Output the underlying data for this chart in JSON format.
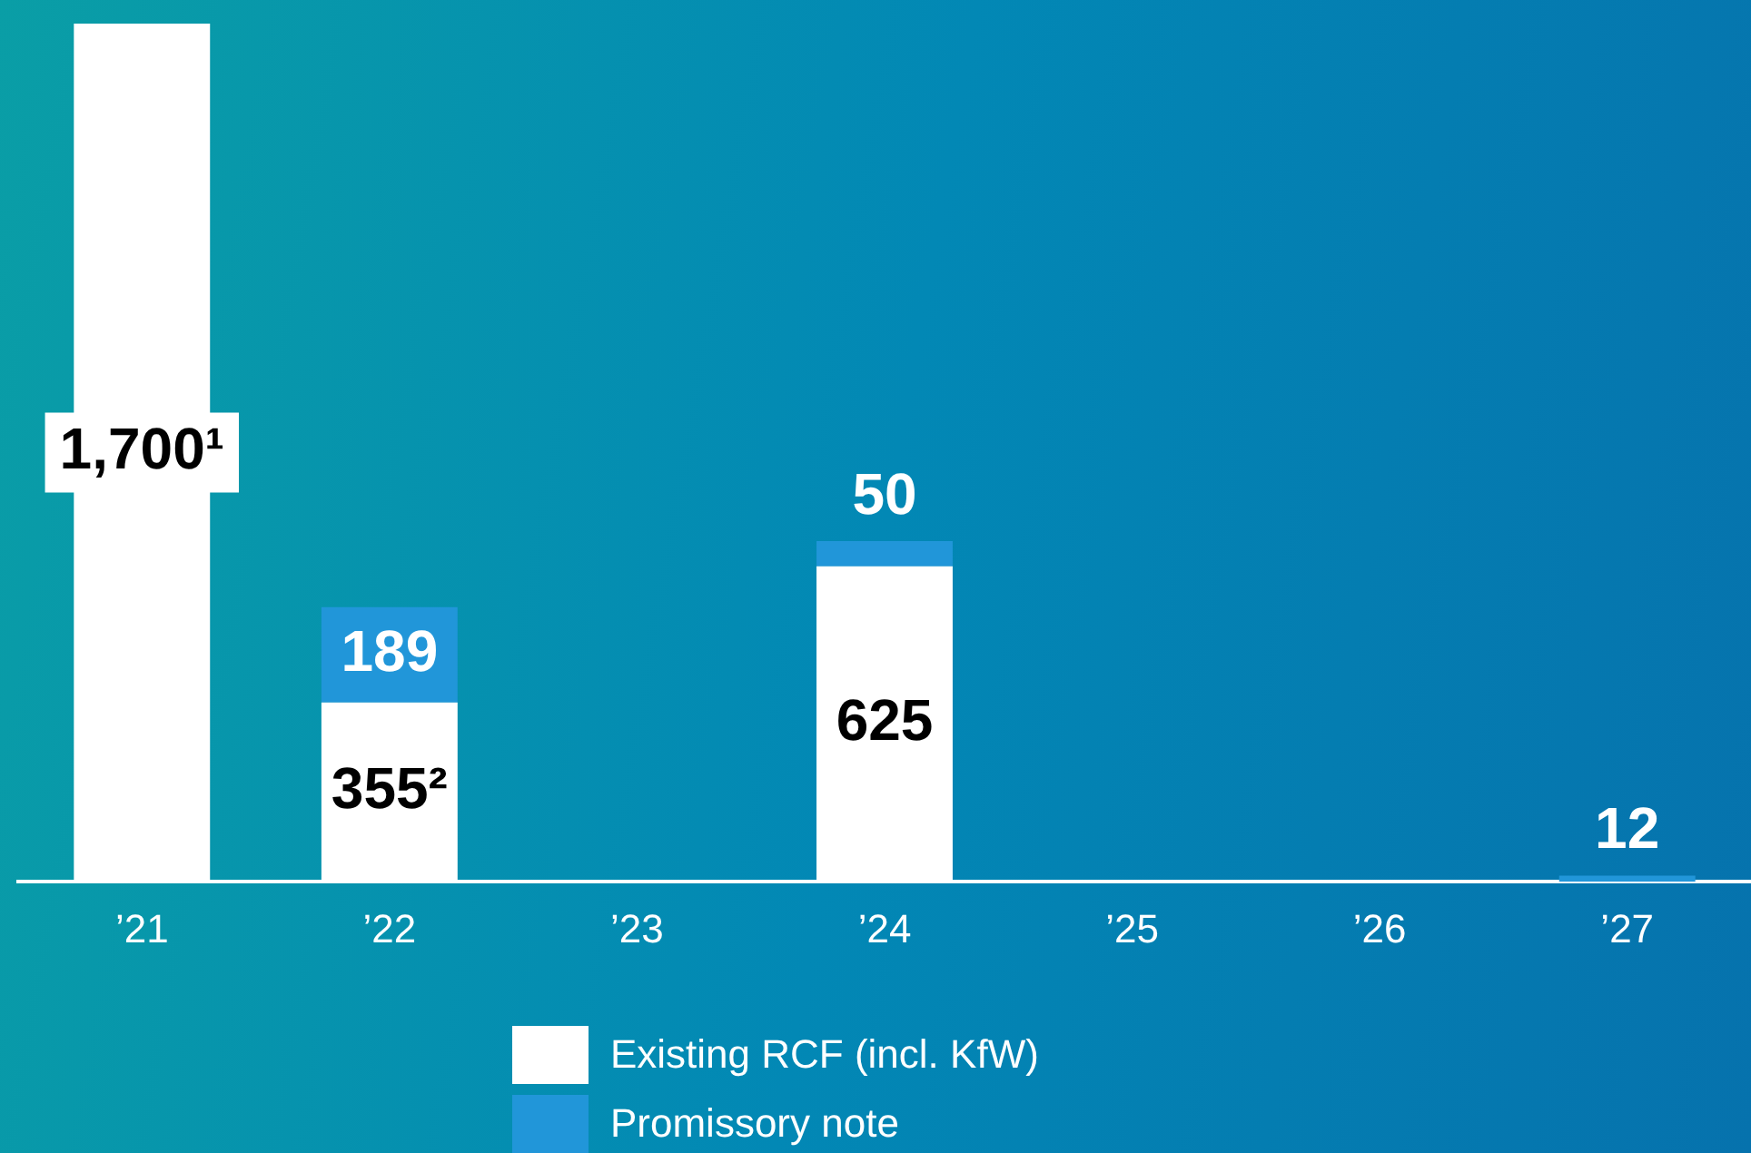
{
  "chart_data": {
    "type": "bar",
    "stacked": true,
    "categories": [
      "’21",
      "’22",
      "’23",
      "’24",
      "’25",
      "’26",
      "’27"
    ],
    "series": [
      {
        "name": "Existing RCF (incl. KfW)",
        "color": "#ffffff",
        "values": [
          1700,
          355,
          null,
          625,
          null,
          null,
          null
        ],
        "value_labels": [
          "1,700¹",
          "355²",
          null,
          "625",
          null,
          null,
          null
        ]
      },
      {
        "name": "Promissory note",
        "color": "#2196d9",
        "values": [
          null,
          189,
          null,
          50,
          null,
          null,
          12
        ],
        "value_labels": [
          null,
          "189",
          null,
          "50",
          null,
          null,
          "12"
        ]
      }
    ],
    "legend": "bottom",
    "grid": false
  }
}
